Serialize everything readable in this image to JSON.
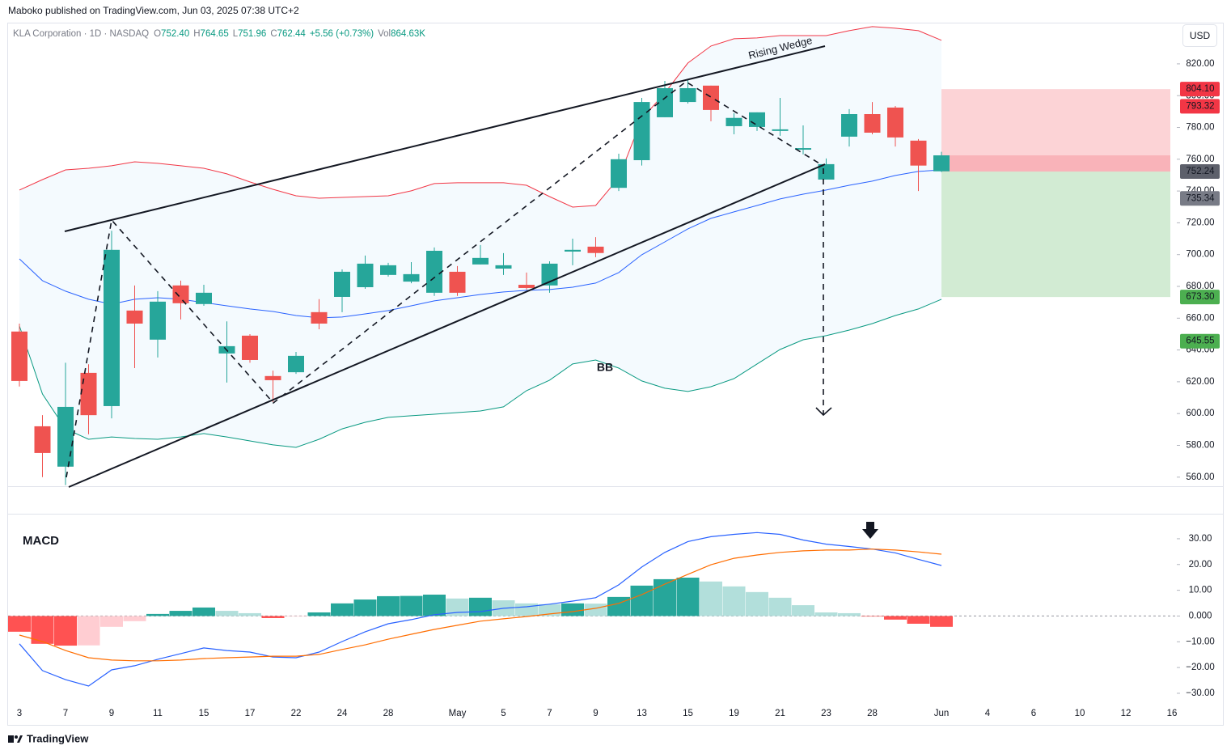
{
  "header": {
    "publisher": "Maboko published on TradingView.com, Jun 03, 2025 07:38 UTC+2"
  },
  "footer": {
    "brand": "TradingView"
  },
  "currency": "USD",
  "chart_data": [
    {
      "type": "candlestick",
      "legend": {
        "symbol": "KLA Corporation · 1D · NASDAQ",
        "items": [
          {
            "key": "O",
            "value": "752.40"
          },
          {
            "key": "H",
            "value": "764.65"
          },
          {
            "key": "L",
            "value": "751.96"
          },
          {
            "key": "C",
            "value": "762.44"
          }
        ],
        "change": "+5.56 (+0.73%)",
        "volume_key": "Vol",
        "volume": "864.63K"
      },
      "annotations": {
        "wedge": "Rising Wedge",
        "bands": "BB"
      },
      "categories": [
        "3",
        null,
        "7",
        null,
        "9",
        null,
        "11",
        null,
        "15",
        null,
        "17",
        null,
        "22",
        null,
        "24",
        null,
        "28",
        null,
        null,
        "May",
        null,
        "5",
        null,
        "7",
        null,
        "9",
        null,
        "13",
        null,
        "15",
        null,
        "19",
        null,
        "21",
        null,
        "23",
        null,
        "28",
        null,
        null,
        "Jun",
        null,
        "4",
        null,
        "6",
        null,
        "10",
        null,
        "12",
        null,
        "16"
      ],
      "open": [
        651.6,
        592,
        566.6,
        625.6,
        604.7,
        664.8,
        646.5,
        680.6,
        668.9,
        637.8,
        649,
        623.6,
        626,
        663.8,
        673.4,
        679.5,
        687.2,
        683,
        676,
        689.2,
        693.8,
        691.2,
        681,
        680.6,
        701.9,
        705,
        742,
        759.4,
        786.4,
        796,
        806.3,
        780.8,
        780.3,
        777.8,
        766,
        747.2,
        774.2,
        788.4,
        792.5,
        771.7,
        752.4,
        null,
        null,
        null,
        null,
        null,
        null,
        null,
        null,
        null,
        null
      ],
      "high": [
        656.6,
        599,
        632,
        631,
        715,
        680.6,
        677,
        683.6,
        681,
        658,
        650,
        627,
        638.8,
        672,
        690.7,
        699.4,
        694.8,
        695.3,
        704.5,
        692.8,
        706,
        700.9,
        688.7,
        695.8,
        710,
        711,
        763.5,
        798.6,
        809.3,
        810.3,
        806.3,
        789,
        789.5,
        798.6,
        781.3,
        760.5,
        791.5,
        796,
        793.5,
        772.7,
        764.65,
        null,
        null,
        null,
        null,
        null,
        null,
        null,
        null,
        null,
        null
      ],
      "low": [
        617,
        560,
        555,
        587,
        597,
        628.6,
        635.3,
        659.2,
        667.8,
        619.5,
        632,
        607.3,
        625,
        653,
        663.8,
        678.5,
        686.2,
        682,
        674,
        674,
        693.8,
        687.2,
        678,
        676,
        693.3,
        698.4,
        740,
        756,
        786.4,
        795,
        783.9,
        775.7,
        777.8,
        774.7,
        763,
        747.2,
        768,
        775.7,
        768,
        740,
        751.96,
        null,
        null,
        null,
        null,
        null,
        null,
        null,
        null,
        null,
        null
      ],
      "close": [
        620.5,
        575.2,
        604.2,
        599,
        703,
        656.6,
        670.4,
        669.4,
        676,
        642.4,
        633.7,
        621,
        636.3,
        656.6,
        689.2,
        694.3,
        693.3,
        687.7,
        702.4,
        676,
        697.9,
        693.3,
        679,
        694.3,
        703,
        701,
        760,
        796,
        804.7,
        804.7,
        791,
        786,
        789.5,
        778.8,
        767,
        756.9,
        788.4,
        776.7,
        773.7,
        756,
        762.44,
        null,
        null,
        null,
        null,
        null,
        null,
        null,
        null,
        null,
        null
      ],
      "up_color": "#26a69a",
      "down_color": "#ef5350",
      "band_fill": "#2196f3",
      "series": [
        {
          "color": "#f23645",
          "values": [
            740.6,
            747.2,
            753.3,
            754.3,
            755.9,
            758.4,
            757.4,
            755.9,
            754.3,
            750.8,
            745.7,
            741.1,
            737,
            735.5,
            736,
            736.5,
            737,
            740.1,
            744.7,
            745.2,
            745.2,
            745.2,
            743.6,
            736.5,
            729.9,
            730.9,
            748.2,
            785.4,
            801.7,
            820.5,
            831.2,
            835.8,
            836.3,
            837.8,
            837.8,
            837.8,
            840.9,
            843.4,
            842.4,
            840.9,
            834.8,
            null,
            null,
            null,
            null,
            null,
            null,
            null,
            null,
            null,
            null
          ]
        },
        {
          "color": "#2962ff",
          "values": [
            697.3,
            683.6,
            677,
            671.9,
            668.8,
            671.9,
            672.9,
            671.9,
            669.8,
            667.8,
            665.8,
            664.2,
            661.7,
            660.2,
            660.7,
            662.7,
            664.8,
            667.8,
            670.9,
            672.9,
            674.9,
            676.5,
            677.5,
            678,
            679.5,
            682.1,
            688.7,
            699.9,
            708,
            716.2,
            722.8,
            726.9,
            730.9,
            735,
            738,
            740.6,
            743.6,
            746.2,
            749.8,
            752.3,
            753.3,
            null,
            null,
            null,
            null,
            null,
            null,
            null,
            null,
            null,
            null
          ]
        },
        {
          "color": "#089981",
          "values": [
            655.1,
            612.3,
            590.4,
            583.8,
            585.3,
            584.3,
            583.8,
            585.3,
            587.4,
            585.3,
            582.8,
            580.3,
            578.7,
            583.8,
            590.4,
            594.5,
            597.6,
            598.6,
            599.6,
            600.6,
            601.6,
            604.2,
            614.4,
            621,
            631.2,
            633.7,
            628.6,
            620.5,
            615.9,
            613.9,
            616.9,
            622,
            631.2,
            640.3,
            646.4,
            649,
            652.5,
            656.6,
            661.7,
            665.8,
            671.9,
            null,
            null,
            null,
            null,
            null,
            null,
            null,
            null,
            null,
            null
          ]
        }
      ],
      "price_tags": [
        {
          "value": 804.1,
          "label": "804.10",
          "color": "#f23645"
        },
        {
          "value": 793.32,
          "label": "793.32",
          "color": "#f23645"
        },
        {
          "value": 752.24,
          "label": "752.24",
          "color": "#5d606b"
        },
        {
          "value": 735.34,
          "label": "735.34",
          "color": "#787b86"
        },
        {
          "value": 673.3,
          "label": "673.30",
          "color": "#4caf50"
        },
        {
          "value": 645.55,
          "label": "645.55",
          "color": "#4caf50"
        }
      ],
      "ylim": [
        554.8,
        844.9
      ],
      "yticks": [
        {
          "value": 560,
          "label": "560.00"
        },
        {
          "value": 580,
          "label": "580.00"
        },
        {
          "value": 600,
          "label": "600.00"
        },
        {
          "value": 620,
          "label": "620.00"
        },
        {
          "value": 640,
          "label": "640.00"
        },
        {
          "value": 660,
          "label": "660.00"
        },
        {
          "value": 680,
          "label": "680.00"
        },
        {
          "value": 700,
          "label": "700.00"
        },
        {
          "value": 720,
          "label": "720.00"
        },
        {
          "value": 740,
          "label": "740.00"
        },
        {
          "value": 760,
          "label": "760.00"
        },
        {
          "value": 780,
          "label": "780.00"
        },
        {
          "value": 800,
          "label": "800.00"
        },
        {
          "value": 820,
          "label": "820.00"
        }
      ],
      "grid": false
    },
    {
      "type": "macd",
      "title": "MACD",
      "histogram": [
        -6.1,
        -10.8,
        -11.5,
        -11.4,
        -4.2,
        -2,
        0.8,
        2,
        3.3,
        2,
        1.1,
        -0.8,
        -0.2,
        1.4,
        4.9,
        6.4,
        7.7,
        7.8,
        8.3,
        6.8,
        7.1,
        6.1,
        4.9,
        4.6,
        4.9,
        4.8,
        7.4,
        11.8,
        14.3,
        14.9,
        13.4,
        11.5,
        9.3,
        7.1,
        4.2,
        1.4,
        1.1,
        -0.2,
        -1.4,
        -3,
        -4.2,
        null,
        null,
        null,
        null,
        null,
        null,
        null,
        null,
        null,
        null
      ],
      "histogram_colors": {
        "grow_above": "#26a69a",
        "fall_above": "#b2dfdb",
        "grow_below": "#ffcdd2",
        "fall_below": "#ff5252"
      },
      "series": [
        {
          "color": "#2962ff",
          "values": [
            -10.8,
            -21.2,
            -24.7,
            -27.2,
            -20.9,
            -19.3,
            -16.8,
            -14.6,
            -12.4,
            -13.4,
            -14,
            -15.9,
            -16.2,
            -14,
            -9.9,
            -6.1,
            -3,
            -1.4,
            0.5,
            1.4,
            1.7,
            3,
            3.6,
            4.6,
            5.8,
            7.1,
            12.1,
            19,
            24.7,
            28.9,
            30.8,
            31.7,
            32.4,
            31.7,
            29.5,
            27.9,
            27,
            26,
            24.5,
            22,
            19.6,
            null,
            null,
            null,
            null,
            null,
            null,
            null,
            null,
            null,
            null
          ]
        },
        {
          "color": "#ff6d00",
          "values": [
            -7.4,
            -9.9,
            -13.4,
            -16.2,
            -17.1,
            -17.4,
            -17.4,
            -17.1,
            -16.5,
            -16.2,
            -15.9,
            -15.6,
            -15.6,
            -14.9,
            -13,
            -11.2,
            -9,
            -7.1,
            -5.2,
            -3.6,
            -2,
            -1.1,
            -0.2,
            0.8,
            1.7,
            3,
            4.9,
            8.3,
            12.4,
            16.2,
            19.9,
            22.4,
            23.7,
            24.7,
            25.3,
            25.6,
            25.6,
            26,
            25.6,
            24.9,
            24,
            null,
            null,
            null,
            null,
            null,
            null,
            null,
            null,
            null,
            null
          ]
        }
      ],
      "ylim": [
        -34.1,
        39.4
      ],
      "yticks": [
        {
          "value": 30,
          "label": "30.00"
        },
        {
          "value": 20,
          "label": "20.00"
        },
        {
          "value": 10,
          "label": "10.00"
        },
        {
          "value": 0,
          "label": "0.000"
        },
        {
          "value": -10,
          "label": "−10.00"
        },
        {
          "value": -20,
          "label": "−20.00"
        },
        {
          "value": -30,
          "label": "−30.00"
        }
      ],
      "grid": false
    }
  ]
}
